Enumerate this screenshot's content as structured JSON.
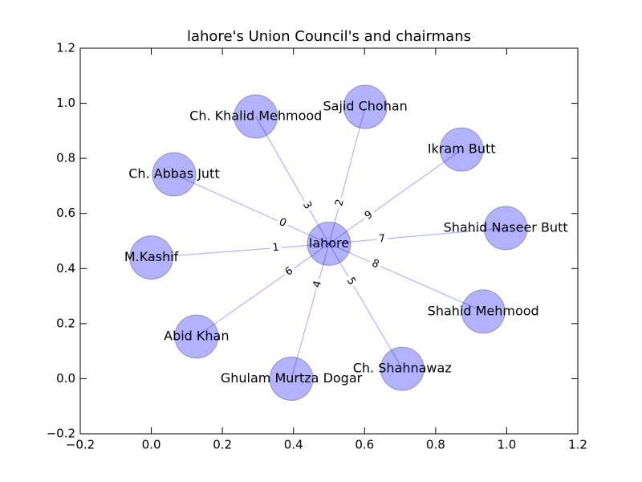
{
  "chart_data": {
    "type": "network",
    "title": "lahore's Union Council's and chairmans",
    "xlim": [
      -0.2,
      1.2
    ],
    "ylim": [
      -0.2,
      1.2
    ],
    "xticks": [
      {
        "value": -0.2,
        "label": "−0.2"
      },
      {
        "value": 0,
        "label": "0.0"
      },
      0.2,
      0.4,
      0.6,
      0.8,
      {
        "value": 1,
        "label": "1.0"
      },
      1.2
    ],
    "yticks": [
      {
        "value": -0.2,
        "label": "−0.2"
      },
      {
        "value": 0,
        "label": "0.0"
      },
      0.2,
      0.4,
      0.6,
      0.8,
      {
        "value": 1,
        "label": "1.0"
      },
      1.2
    ],
    "node_color": "#0000ff",
    "edge_color": "#0000ff",
    "nodes": [
      {
        "label": "lahore",
        "x": 0.5,
        "y": 0.49
      },
      {
        "label": "Ch. Abbas Jutt",
        "x": 0.064,
        "y": 0.742
      },
      {
        "label": "M.Kashif",
        "x": 0.0,
        "y": 0.44
      },
      {
        "label": "Sajid Chohan",
        "x": 0.602,
        "y": 0.987
      },
      {
        "label": "Ch. Khalid Mehmood",
        "x": 0.294,
        "y": 0.952
      },
      {
        "label": "Ghulam Murtza Dogar",
        "x": 0.394,
        "y": 0.0
      },
      {
        "label": "Ch. Shahnawaz",
        "x": 0.706,
        "y": 0.036
      },
      {
        "label": "Abid Khan",
        "x": 0.127,
        "y": 0.153
      },
      {
        "label": "Shahid Naseer Butt",
        "x": 0.997,
        "y": 0.547
      },
      {
        "label": "Shahid Mehmood",
        "x": 0.934,
        "y": 0.244
      },
      {
        "label": "Ikram Butt",
        "x": 0.873,
        "y": 0.832
      }
    ],
    "edges": [
      {
        "source": 0,
        "target": 1,
        "label": "0"
      },
      {
        "source": 0,
        "target": 2,
        "label": "1"
      },
      {
        "source": 0,
        "target": 3,
        "label": "2"
      },
      {
        "source": 0,
        "target": 4,
        "label": "3"
      },
      {
        "source": 0,
        "target": 5,
        "label": "4"
      },
      {
        "source": 0,
        "target": 6,
        "label": "5"
      },
      {
        "source": 0,
        "target": 7,
        "label": "6"
      },
      {
        "source": 0,
        "target": 8,
        "label": "7"
      },
      {
        "source": 0,
        "target": 9,
        "label": "8"
      },
      {
        "source": 0,
        "target": 10,
        "label": "9"
      }
    ]
  }
}
